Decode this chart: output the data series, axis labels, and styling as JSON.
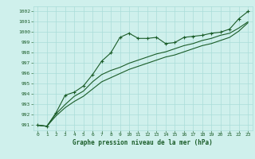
{
  "xlabel": "Graphe pression niveau de la mer (hPa)",
  "background_color": "#cff0ec",
  "grid_color": "#aaddd8",
  "line_color": "#1a5c28",
  "ylim": [
    990.5,
    1002.5
  ],
  "xlim": [
    -0.5,
    23.5
  ],
  "yticks": [
    991,
    992,
    993,
    994,
    995,
    996,
    997,
    998,
    999,
    1000,
    1001,
    1002
  ],
  "xticks": [
    0,
    1,
    2,
    3,
    4,
    5,
    6,
    7,
    8,
    9,
    10,
    11,
    12,
    13,
    14,
    15,
    16,
    17,
    18,
    19,
    20,
    21,
    22,
    23
  ],
  "series1_x": [
    0,
    1,
    2,
    3,
    4,
    5,
    6,
    7,
    8,
    9,
    10,
    11,
    12,
    13,
    14,
    15,
    16,
    17,
    18,
    19,
    20,
    21,
    22,
    23
  ],
  "series1_y": [
    991.0,
    990.9,
    992.2,
    993.9,
    994.2,
    994.8,
    995.9,
    997.2,
    998.0,
    999.5,
    999.9,
    999.4,
    999.4,
    999.5,
    998.9,
    999.0,
    999.5,
    999.6,
    999.7,
    999.9,
    1000.0,
    1000.3,
    1001.3,
    1002.0
  ],
  "series2_x": [
    0,
    1,
    2,
    3,
    4,
    5,
    6,
    7,
    8,
    9,
    10,
    11,
    12,
    13,
    14,
    15,
    16,
    17,
    18,
    19,
    20,
    21,
    22,
    23
  ],
  "series2_y": [
    991.0,
    990.9,
    992.1,
    993.0,
    993.8,
    994.3,
    995.2,
    995.9,
    996.3,
    996.6,
    997.0,
    997.3,
    997.6,
    997.9,
    998.1,
    998.4,
    998.7,
    998.9,
    999.2,
    999.4,
    999.7,
    999.9,
    1000.4,
    1001.0
  ],
  "series3_x": [
    0,
    1,
    2,
    3,
    4,
    5,
    6,
    7,
    8,
    9,
    10,
    11,
    12,
    13,
    14,
    15,
    16,
    17,
    18,
    19,
    20,
    21,
    22,
    23
  ],
  "series3_y": [
    991.0,
    990.9,
    991.9,
    992.7,
    993.3,
    993.8,
    994.5,
    995.2,
    995.6,
    996.0,
    996.4,
    996.7,
    997.0,
    997.3,
    997.6,
    997.8,
    998.1,
    998.4,
    998.7,
    998.9,
    999.2,
    999.5,
    1000.1,
    1000.9
  ]
}
